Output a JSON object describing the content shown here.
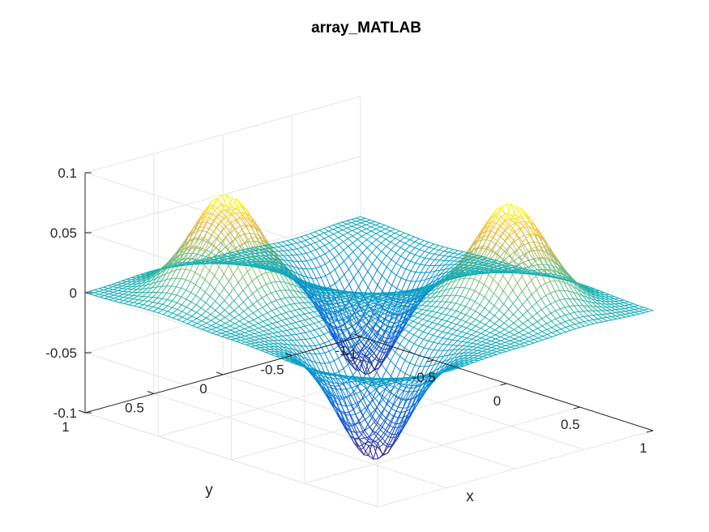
{
  "chart_data": {
    "type": "surface",
    "style": "mesh",
    "colormap": "parula",
    "title": "array_MATLAB",
    "xlabel": "x",
    "ylabel": "y",
    "zlabel": "",
    "xlim": [
      -1,
      1
    ],
    "ylim": [
      -1,
      1
    ],
    "zlim": [
      -0.1,
      0.1
    ],
    "x_ticks": [
      -1,
      -0.5,
      0,
      0.5,
      1
    ],
    "y_ticks": [
      -1,
      -0.5,
      0,
      0.5,
      1
    ],
    "z_ticks": [
      -0.1,
      -0.05,
      0,
      0.05,
      0.1
    ],
    "x_tick_labels": [
      "-1",
      "-0.5",
      "0",
      "0.5",
      "1"
    ],
    "y_tick_labels": [
      "-1",
      "-0.5",
      "0",
      "0.5",
      "1"
    ],
    "z_tick_labels": [
      "-0.1",
      "-0.05",
      "0",
      "0.05",
      "0.1"
    ],
    "grid": true,
    "view": "3d-default",
    "peak_max": 0.08,
    "trough_min": -0.09,
    "peak_locations": [
      [
        -0.5,
        0.5
      ],
      [
        0.5,
        -0.5
      ]
    ],
    "trough_locations": [
      [
        0.5,
        0.5
      ],
      [
        -0.5,
        -0.5
      ]
    ]
  }
}
